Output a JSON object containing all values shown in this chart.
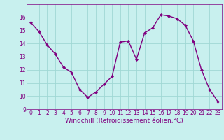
{
  "x": [
    0,
    1,
    2,
    3,
    4,
    5,
    6,
    7,
    8,
    9,
    10,
    11,
    12,
    13,
    14,
    15,
    16,
    17,
    18,
    19,
    20,
    21,
    22,
    23
  ],
  "y": [
    15.6,
    14.9,
    13.9,
    13.2,
    12.2,
    11.8,
    10.5,
    9.9,
    10.3,
    10.9,
    11.5,
    14.1,
    14.2,
    12.8,
    14.8,
    15.2,
    16.2,
    16.1,
    15.9,
    15.4,
    14.2,
    12.0,
    10.5,
    9.6
  ],
  "line_color": "#800080",
  "marker": "D",
  "marker_size": 2.0,
  "bg_color": "#c8f0ee",
  "grid_color": "#a0d8d4",
  "xlabel": "Windchill (Refroidissement éolien,°C)",
  "xlabel_color": "#800080",
  "tick_color": "#800080",
  "ylim": [
    9,
    17
  ],
  "xlim": [
    -0.5,
    23.5
  ],
  "yticks": [
    9,
    10,
    11,
    12,
    13,
    14,
    15,
    16
  ],
  "xticks": [
    0,
    1,
    2,
    3,
    4,
    5,
    6,
    7,
    8,
    9,
    10,
    11,
    12,
    13,
    14,
    15,
    16,
    17,
    18,
    19,
    20,
    21,
    22,
    23
  ],
  "spine_color": "#800080",
  "linewidth": 1.0,
  "tick_fontsize": 5.5,
  "xlabel_fontsize": 6.5
}
